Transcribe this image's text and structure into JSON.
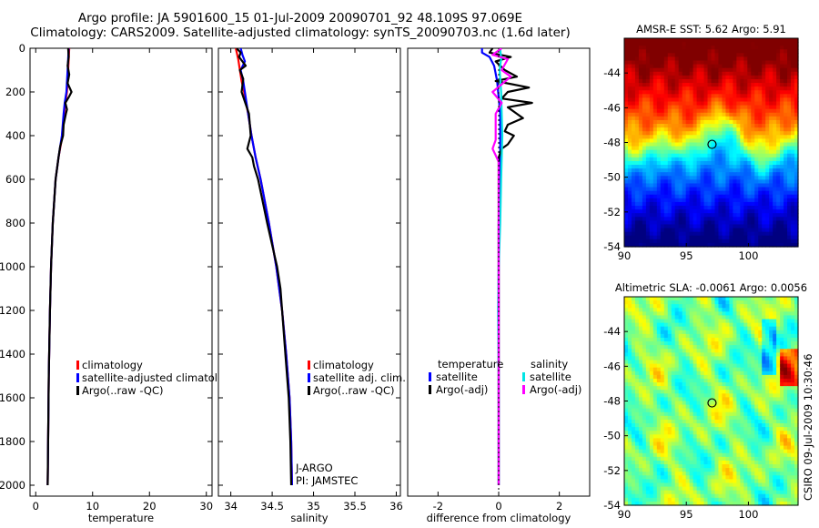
{
  "header": {
    "title_line1": "Argo profile: JA 5901600_15 01-Jul-2009 20090701_92 48.109S 97.069E",
    "title_line2": "Climatology: CARS2009. Satellite-adjusted climatology: synTS_20090703.nc (1.6d later)"
  },
  "colors": {
    "climatology": "#ff0000",
    "satellite": "#0000ff",
    "argo": "#000000",
    "sat_sal": "#00e5e5",
    "argo_sal": "#ff00ff"
  },
  "chart_data": [
    {
      "id": "temperature",
      "type": "line",
      "xlabel": "temperature",
      "ylabel": "",
      "xlim": [
        -1,
        31
      ],
      "ylim": [
        2050,
        0
      ],
      "xticks": [
        0,
        10,
        20,
        30
      ],
      "yticks": [
        0,
        200,
        400,
        600,
        800,
        1000,
        1200,
        1400,
        1600,
        1800,
        2000
      ],
      "legend": [
        "climatology",
        "satellite-adjusted climatolog",
        "Argo(..raw -QC)"
      ],
      "series": [
        {
          "name": "climatology",
          "color": "red",
          "depth": [
            0,
            100,
            200,
            250,
            300,
            400,
            500,
            600,
            800,
            1000,
            1200,
            1500,
            2000
          ],
          "values": [
            5.9,
            5.7,
            5.5,
            5.2,
            5.0,
            4.7,
            4.0,
            3.5,
            3.0,
            2.7,
            2.5,
            2.3,
            2.1
          ]
        },
        {
          "name": "satellite",
          "color": "blue",
          "depth": [
            0,
            100,
            200,
            250,
            300,
            400,
            500,
            600,
            800,
            1000,
            1200,
            1500,
            2000
          ],
          "values": [
            5.8,
            5.6,
            5.4,
            5.1,
            4.9,
            4.6,
            4.0,
            3.5,
            3.0,
            2.7,
            2.5,
            2.3,
            2.1
          ]
        },
        {
          "name": "argo",
          "color": "black",
          "depth": [
            0,
            40,
            80,
            120,
            160,
            200,
            220,
            250,
            280,
            300,
            350,
            400,
            450,
            500,
            600,
            800,
            1000,
            1200,
            1500,
            2000
          ],
          "values": [
            5.7,
            5.8,
            5.6,
            5.9,
            5.6,
            6.3,
            5.9,
            5.2,
            5.5,
            5.3,
            4.9,
            4.8,
            4.3,
            4.0,
            3.5,
            3.0,
            2.7,
            2.5,
            2.3,
            2.1
          ]
        }
      ]
    },
    {
      "id": "salinity",
      "type": "line",
      "xlabel": "salinity",
      "ylabel": "",
      "xlim": [
        33.85,
        36.05
      ],
      "ylim": [
        2050,
        0
      ],
      "xticks": [
        34,
        34.5,
        35,
        35.5,
        36
      ],
      "yticks": [
        0,
        200,
        400,
        600,
        800,
        1000,
        1200,
        1400,
        1600,
        1800,
        2000
      ],
      "legend": [
        "climatology",
        "satellite adj. clim.",
        "Argo(..raw -QC)"
      ],
      "annotations": [
        "J-ARGO",
        "PI: JAMSTEC"
      ],
      "series": [
        {
          "name": "climatology",
          "color": "red",
          "depth": [
            0,
            50,
            100,
            150,
            200,
            300,
            400,
            500,
            600,
            800,
            1000,
            1200,
            1400,
            1600,
            1800,
            2000
          ],
          "values": [
            34.06,
            34.09,
            34.11,
            34.13,
            34.16,
            34.21,
            34.25,
            34.3,
            34.36,
            34.46,
            34.55,
            34.62,
            34.67,
            34.71,
            34.73,
            34.74
          ]
        },
        {
          "name": "satellite",
          "color": "blue",
          "depth": [
            0,
            30,
            60,
            100,
            150,
            200,
            300,
            400,
            500,
            600,
            800,
            1000,
            1200,
            1400,
            1600,
            1800,
            2000
          ],
          "values": [
            34.12,
            34.14,
            34.17,
            34.12,
            34.15,
            34.17,
            34.21,
            34.25,
            34.3,
            34.36,
            34.46,
            34.55,
            34.62,
            34.67,
            34.71,
            34.73,
            34.74
          ]
        },
        {
          "name": "argo",
          "color": "black",
          "depth": [
            0,
            20,
            40,
            80,
            100,
            140,
            200,
            300,
            400,
            460,
            500,
            540,
            600,
            800,
            1000,
            1100,
            1200,
            1400,
            1600,
            1800,
            2000
          ],
          "values": [
            34.07,
            34.12,
            34.1,
            34.18,
            34.11,
            34.15,
            34.13,
            34.22,
            34.24,
            34.2,
            34.26,
            34.28,
            34.33,
            34.44,
            34.56,
            34.6,
            34.62,
            34.66,
            34.7,
            34.72,
            34.73
          ]
        }
      ]
    },
    {
      "id": "difference",
      "type": "line",
      "xlabel": "difference from climatology",
      "ylabel": "",
      "xlim": [
        -3,
        3
      ],
      "ylim": [
        2050,
        0
      ],
      "xticks": [
        -2,
        0,
        2
      ],
      "legend_temperature": {
        "title": "temperature",
        "items": [
          "satellite",
          "Argo(-adj)"
        ]
      },
      "legend_salinity": {
        "title": "salinity",
        "items": [
          "satellite",
          "Argo(-adj)"
        ]
      },
      "series": [
        {
          "name": "temperature satellite",
          "color": "blue",
          "depth": [
            0,
            20,
            40,
            80,
            150,
            300,
            500,
            800,
            1200,
            1600,
            2000
          ],
          "values": [
            -0.55,
            -0.55,
            -0.3,
            -0.15,
            -0.05,
            0.05,
            0.05,
            0.0,
            0.0,
            0.0,
            0.0
          ]
        },
        {
          "name": "temperature Argo(-adj)",
          "color": "black",
          "depth": [
            0,
            20,
            40,
            60,
            100,
            130,
            150,
            180,
            200,
            230,
            250,
            270,
            300,
            320,
            350,
            380,
            400,
            440,
            460,
            500,
            600,
            800,
            1000,
            2000
          ],
          "values": [
            -0.2,
            -0.3,
            0.4,
            -0.1,
            0.2,
            0.6,
            -0.1,
            1.0,
            0.3,
            0.1,
            1.1,
            0.3,
            0.6,
            0.8,
            0.3,
            0.2,
            0.5,
            0.3,
            0.1,
            0.0,
            0.0,
            0.0,
            0.0,
            0.0
          ]
        },
        {
          "name": "salinity satellite",
          "color": "cyan",
          "depth": [
            0,
            50,
            100,
            200,
            400,
            600,
            800,
            1000,
            1200,
            1500,
            1800,
            2000
          ],
          "values": [
            0.05,
            0.08,
            0.03,
            0.08,
            0.12,
            0.08,
            0.05,
            0.0,
            -0.02,
            0.0,
            0.0,
            0.0
          ]
        },
        {
          "name": "salinity Argo(-adj)",
          "color": "magenta",
          "depth": [
            0,
            30,
            50,
            100,
            130,
            200,
            250,
            300,
            380,
            420,
            460,
            490,
            520,
            600,
            800,
            2000
          ],
          "values": [
            0.1,
            -0.2,
            0.3,
            0.1,
            0.4,
            -0.2,
            0.1,
            -0.1,
            -0.1,
            -0.1,
            -0.2,
            -0.1,
            0.0,
            0.0,
            0.0,
            0.0
          ]
        }
      ]
    },
    {
      "id": "sst_map",
      "type": "heatmap",
      "title": "AMSR-E SST: 5.62 Argo: 5.91",
      "xlim": [
        90,
        104
      ],
      "ylim": [
        -54,
        -42
      ],
      "xticks": [
        90,
        95,
        100
      ],
      "yticks": [
        -44,
        -46,
        -48,
        -50,
        -52,
        -54
      ],
      "marker": {
        "lon": 97.069,
        "lat": -48.109
      }
    },
    {
      "id": "sla_map",
      "type": "heatmap",
      "title": "Altimetric SLA: -0.0061 Argo: 0.0056",
      "xlim": [
        90,
        104
      ],
      "ylim": [
        -54,
        -42
      ],
      "xticks": [
        90,
        95,
        100
      ],
      "yticks": [
        -44,
        -46,
        -48,
        -50,
        -52,
        -54
      ],
      "marker": {
        "lon": 97.069,
        "lat": -48.109
      }
    }
  ],
  "footer": {
    "side_label": "CSIRO 09-Jul-2009 10:30:46"
  }
}
